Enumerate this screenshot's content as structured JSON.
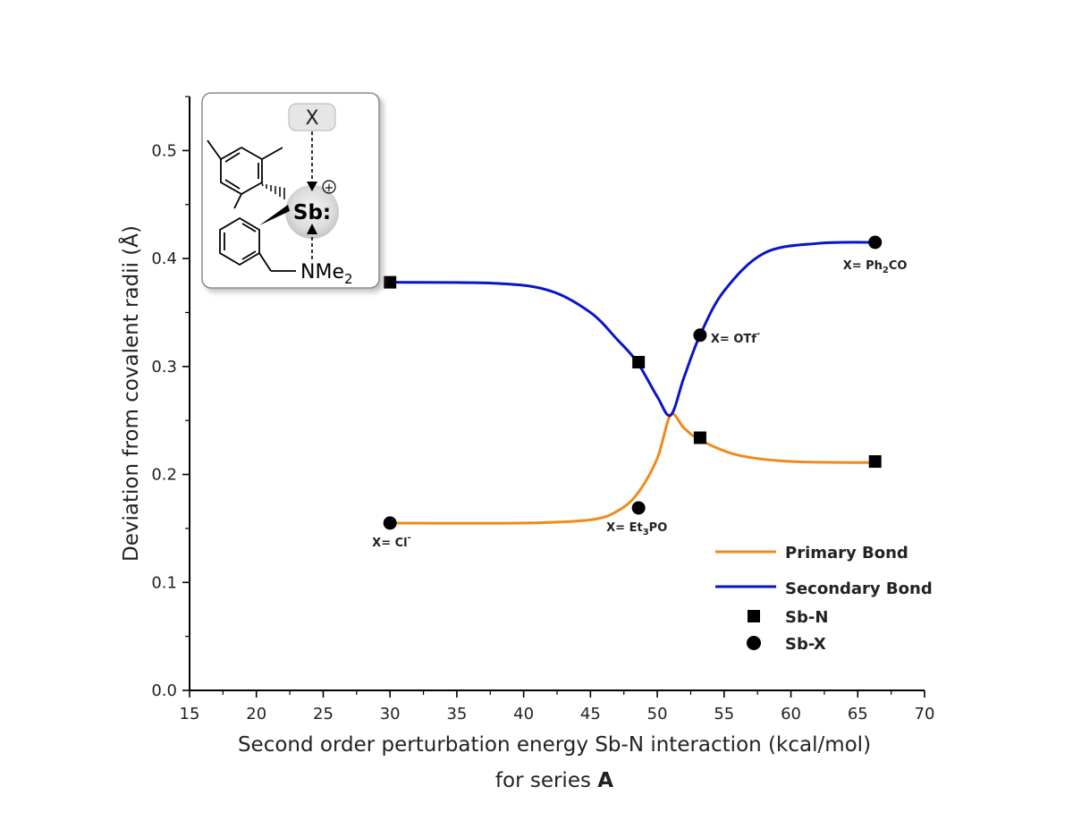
{
  "colors": {
    "primary": "#f08a1c",
    "secondary": "#0a14c8",
    "marker": "#000000",
    "axis": "#000000"
  },
  "chart_data": {
    "type": "line",
    "xlabel": "Second order perturbation energy Sb-N interaction (kcal/mol)",
    "xlabel_line2_prefix": "for series ",
    "xlabel_line2_bold": "A",
    "ylabel": "Deviation from covalent radii (Å)",
    "xlim": [
      15,
      70
    ],
    "ylim": [
      0,
      0.55
    ],
    "x_ticks": [
      "15",
      "20",
      "25",
      "30",
      "35",
      "40",
      "45",
      "50",
      "55",
      "60",
      "65",
      "70"
    ],
    "x_tick_values": [
      15,
      20,
      25,
      30,
      35,
      40,
      45,
      50,
      55,
      60,
      65,
      70
    ],
    "y_ticks": [
      "0.0",
      "0.1",
      "0.2",
      "0.3",
      "0.4",
      "0.5"
    ],
    "y_tick_values": [
      0,
      0.1,
      0.2,
      0.3,
      0.4,
      0.5
    ],
    "grid": false,
    "legend_position": "bottom-right",
    "legend": [
      {
        "label": "Primary Bond",
        "kind": "line",
        "color": "#f08a1c"
      },
      {
        "label": "Secondary Bond",
        "kind": "line",
        "color": "#0a14c8"
      },
      {
        "label": "Sb-N",
        "kind": "square"
      },
      {
        "label": "Sb-X",
        "kind": "circle"
      }
    ],
    "series": [
      {
        "name": "Primary Bond",
        "kind": "line",
        "x": [
          30.0,
          40.0,
          45.0,
          47.0,
          48.5,
          50.0,
          51.0,
          52.0,
          53.2,
          56.0,
          60.0,
          66.3
        ],
        "y": [
          0.155,
          0.155,
          0.158,
          0.166,
          0.182,
          0.215,
          0.255,
          0.243,
          0.232,
          0.218,
          0.212,
          0.211
        ]
      },
      {
        "name": "Secondary Bond",
        "kind": "line",
        "x": [
          30.0,
          38.0,
          42.0,
          45.0,
          47.0,
          48.5,
          50.0,
          51.0,
          52.0,
          53.2,
          55.0,
          58.0,
          62.0,
          66.3
        ],
        "y": [
          0.378,
          0.377,
          0.37,
          0.35,
          0.325,
          0.304,
          0.272,
          0.255,
          0.29,
          0.329,
          0.37,
          0.405,
          0.414,
          0.415
        ]
      },
      {
        "name": "Sb-N",
        "kind": "square",
        "x": [
          30.0,
          48.6,
          53.2,
          66.3
        ],
        "y": [
          0.378,
          0.304,
          0.234,
          0.212
        ]
      },
      {
        "name": "Sb-X",
        "kind": "circle",
        "x": [
          30.0,
          48.6,
          53.2,
          66.3
        ],
        "y": [
          0.155,
          0.169,
          0.329,
          0.415
        ]
      }
    ],
    "annotations": [
      {
        "id": "cl",
        "prefix": "X= Cl",
        "sup": "-",
        "sub": "",
        "suffix": "",
        "x": 30.0,
        "y": 0.155
      },
      {
        "id": "et3po",
        "prefix": "X= Et",
        "sup": "",
        "sub": "3",
        "suffix": "PO",
        "x": 48.6,
        "y": 0.169
      },
      {
        "id": "otf",
        "prefix": "X= OTf",
        "sup": "-",
        "sub": "",
        "suffix": "",
        "x": 53.2,
        "y": 0.329
      },
      {
        "id": "ph2co",
        "prefix": "X= Ph",
        "sup": "",
        "sub": "2",
        "suffix": "CO",
        "x": 66.3,
        "y": 0.415
      }
    ]
  },
  "inset": {
    "x_label": "X",
    "sb_label": "Sb:",
    "plus_symbol": "+",
    "nme_label": "NMe",
    "nme_sub": "2"
  }
}
